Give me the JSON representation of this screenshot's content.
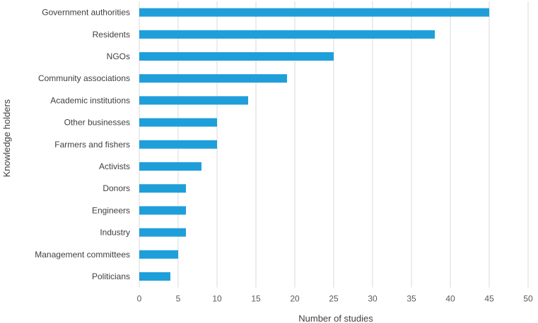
{
  "chart_data": {
    "type": "bar",
    "orientation": "horizontal",
    "title": "",
    "xlabel": "Number of studies",
    "ylabel": "Knowledge holders",
    "xlim": [
      0,
      50
    ],
    "xticks": [
      0,
      5,
      10,
      15,
      20,
      25,
      30,
      35,
      40,
      45,
      50
    ],
    "grid": true,
    "bar_color": "#1f9fda",
    "categories": [
      "Government authorities",
      "Residents",
      "NGOs",
      "Community associations",
      "Academic institutions",
      "Other businesses",
      "Farmers and fishers",
      "Activists",
      "Donors",
      "Engineers",
      "Industry",
      "Management committees",
      "Politicians"
    ],
    "values": [
      45,
      38,
      25,
      19,
      14,
      10,
      10,
      8,
      6,
      6,
      6,
      5,
      4
    ]
  }
}
